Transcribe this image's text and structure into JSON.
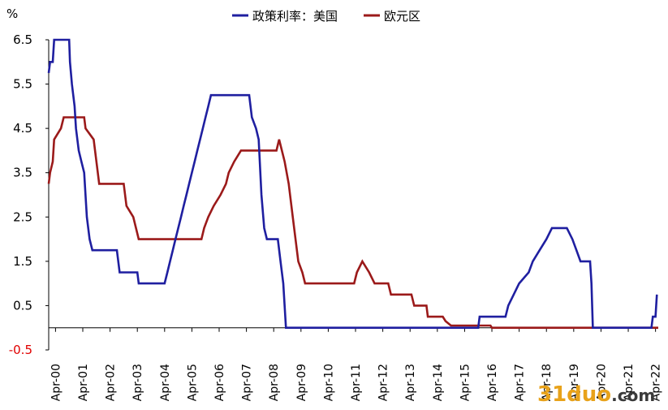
{
  "chart_data": {
    "type": "line",
    "unit_label": "%",
    "ylim": [
      -0.5,
      6.5
    ],
    "y_ticks": [
      "6.5",
      "5.5",
      "4.5",
      "3.5",
      "2.5",
      "1.5",
      "0.5",
      "-0.5"
    ],
    "y_tick_values": [
      6.5,
      5.5,
      4.5,
      3.5,
      2.5,
      1.5,
      0.5,
      -0.5
    ],
    "x_ticks": [
      "Apr-00",
      "Apr-01",
      "Apr-02",
      "Apr-03",
      "Apr-04",
      "Apr-05",
      "Apr-06",
      "Apr-07",
      "Apr-08",
      "Apr-09",
      "Apr-10",
      "Apr-11",
      "Apr-12",
      "Apr-13",
      "Apr-14",
      "Apr-15",
      "Apr-16",
      "Apr-17",
      "Apr-18",
      "Apr-19",
      "Apr-20",
      "Apr-21",
      "Apr-22"
    ],
    "x_tick_values": [
      2000.25,
      2001.25,
      2002.25,
      2003.25,
      2004.25,
      2005.25,
      2006.25,
      2007.25,
      2008.25,
      2009.25,
      2010.25,
      2011.25,
      2012.25,
      2013.25,
      2014.25,
      2015.25,
      2016.25,
      2017.25,
      2018.25,
      2019.25,
      2020.25,
      2021.25,
      2022.25
    ],
    "xlim": [
      2000.0,
      2022.35
    ],
    "grid": false,
    "legend_position": "top-center",
    "series": [
      {
        "name": "政策利率：美国",
        "color": "#1f1fa0",
        "points": [
          [
            2000.0,
            5.75
          ],
          [
            2000.05,
            6.0
          ],
          [
            2000.15,
            6.0
          ],
          [
            2000.2,
            6.5
          ],
          [
            2000.75,
            6.5
          ],
          [
            2000.78,
            6.0
          ],
          [
            2000.85,
            5.5
          ],
          [
            2000.95,
            5.0
          ],
          [
            2001.0,
            4.5
          ],
          [
            2001.1,
            4.0
          ],
          [
            2001.2,
            3.75
          ],
          [
            2001.3,
            3.5
          ],
          [
            2001.4,
            2.5
          ],
          [
            2001.5,
            2.0
          ],
          [
            2001.6,
            1.75
          ],
          [
            2002.5,
            1.75
          ],
          [
            2002.6,
            1.25
          ],
          [
            2003.25,
            1.25
          ],
          [
            2003.3,
            1.0
          ],
          [
            2004.25,
            1.0
          ],
          [
            2004.35,
            1.25
          ],
          [
            2004.45,
            1.5
          ],
          [
            2004.55,
            1.75
          ],
          [
            2004.65,
            2.0
          ],
          [
            2004.75,
            2.25
          ],
          [
            2004.85,
            2.5
          ],
          [
            2004.95,
            2.75
          ],
          [
            2005.05,
            3.0
          ],
          [
            2005.15,
            3.25
          ],
          [
            2005.25,
            3.5
          ],
          [
            2005.35,
            3.75
          ],
          [
            2005.45,
            4.0
          ],
          [
            2005.55,
            4.25
          ],
          [
            2005.65,
            4.5
          ],
          [
            2005.75,
            4.75
          ],
          [
            2005.85,
            5.0
          ],
          [
            2005.95,
            5.25
          ],
          [
            2007.35,
            5.25
          ],
          [
            2007.45,
            4.75
          ],
          [
            2007.6,
            4.5
          ],
          [
            2007.7,
            4.25
          ],
          [
            2007.8,
            3.0
          ],
          [
            2007.9,
            2.25
          ],
          [
            2008.0,
            2.0
          ],
          [
            2008.4,
            2.0
          ],
          [
            2008.5,
            1.5
          ],
          [
            2008.6,
            1.0
          ],
          [
            2008.7,
            0.0
          ],
          [
            2015.75,
            0.0
          ],
          [
            2015.8,
            0.25
          ],
          [
            2016.75,
            0.25
          ],
          [
            2016.85,
            0.5
          ],
          [
            2017.05,
            0.75
          ],
          [
            2017.25,
            1.0
          ],
          [
            2017.6,
            1.25
          ],
          [
            2017.75,
            1.5
          ],
          [
            2018.0,
            1.75
          ],
          [
            2018.25,
            2.0
          ],
          [
            2018.45,
            2.25
          ],
          [
            2019.0,
            2.25
          ],
          [
            2019.2,
            2.0
          ],
          [
            2019.35,
            1.75
          ],
          [
            2019.5,
            1.5
          ],
          [
            2019.85,
            1.5
          ],
          [
            2019.9,
            1.0
          ],
          [
            2019.95,
            0.0
          ],
          [
            2022.1,
            0.0
          ],
          [
            2022.15,
            0.25
          ],
          [
            2022.25,
            0.25
          ],
          [
            2022.3,
            0.75
          ]
        ]
      },
      {
        "name": "欧元区",
        "color": "#9b1a1a",
        "points": [
          [
            2000.0,
            3.25
          ],
          [
            2000.05,
            3.5
          ],
          [
            2000.15,
            3.75
          ],
          [
            2000.2,
            4.25
          ],
          [
            2000.45,
            4.5
          ],
          [
            2000.55,
            4.75
          ],
          [
            2001.3,
            4.75
          ],
          [
            2001.35,
            4.5
          ],
          [
            2001.65,
            4.25
          ],
          [
            2001.75,
            3.75
          ],
          [
            2001.85,
            3.25
          ],
          [
            2002.75,
            3.25
          ],
          [
            2002.85,
            2.75
          ],
          [
            2003.1,
            2.5
          ],
          [
            2003.3,
            2.0
          ],
          [
            2005.6,
            2.0
          ],
          [
            2005.7,
            2.25
          ],
          [
            2005.85,
            2.5
          ],
          [
            2006.05,
            2.75
          ],
          [
            2006.3,
            3.0
          ],
          [
            2006.5,
            3.25
          ],
          [
            2006.6,
            3.5
          ],
          [
            2006.8,
            3.75
          ],
          [
            2007.05,
            4.0
          ],
          [
            2008.35,
            4.0
          ],
          [
            2008.45,
            4.25
          ],
          [
            2008.65,
            3.75
          ],
          [
            2008.8,
            3.25
          ],
          [
            2008.95,
            2.5
          ],
          [
            2009.05,
            2.0
          ],
          [
            2009.15,
            1.5
          ],
          [
            2009.3,
            1.25
          ],
          [
            2009.4,
            1.0
          ],
          [
            2011.2,
            1.0
          ],
          [
            2011.3,
            1.25
          ],
          [
            2011.5,
            1.5
          ],
          [
            2011.75,
            1.25
          ],
          [
            2011.95,
            1.0
          ],
          [
            2012.45,
            1.0
          ],
          [
            2012.55,
            0.75
          ],
          [
            2013.3,
            0.75
          ],
          [
            2013.4,
            0.5
          ],
          [
            2013.85,
            0.5
          ],
          [
            2013.9,
            0.25
          ],
          [
            2014.45,
            0.25
          ],
          [
            2014.55,
            0.15
          ],
          [
            2014.75,
            0.05
          ],
          [
            2016.2,
            0.05
          ],
          [
            2016.25,
            0.0
          ],
          [
            2022.35,
            0.0
          ]
        ]
      }
    ]
  },
  "watermark": {
    "text_a": "31duo",
    "text_b": ".com",
    "color_a": "#e8a21a",
    "color_b": "#3a3a3a"
  }
}
